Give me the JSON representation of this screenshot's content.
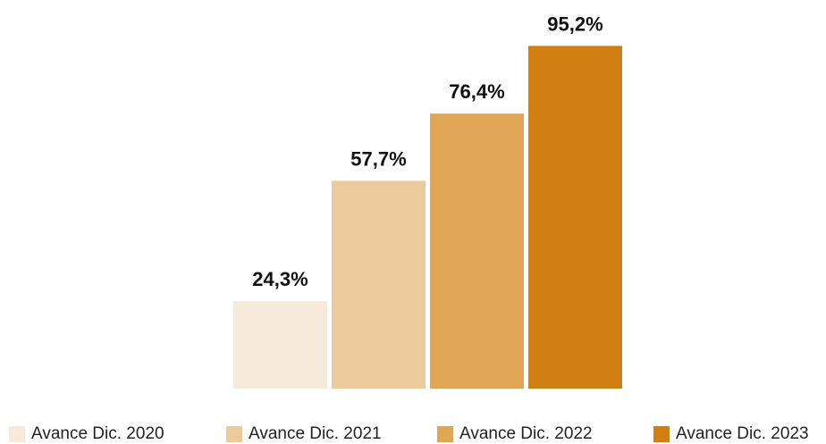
{
  "chart_data": {
    "type": "bar",
    "title": "",
    "xlabel": "",
    "ylabel": "",
    "ylim": [
      0,
      100
    ],
    "grid": false,
    "legend": "bottom",
    "categories": [
      "Avance Dic. 2020",
      "Avance Dic. 2021",
      "Avance Dic. 2022",
      "Avance Dic. 2023"
    ],
    "values": [
      24.3,
      57.7,
      76.4,
      95.2
    ],
    "labels": [
      "24,3%",
      "57,7%",
      "76,4%",
      "95,2%"
    ],
    "colors": [
      "#f7eadb",
      "#ecca9c",
      "#e0a555",
      "#d17f10"
    ]
  },
  "legend": {
    "items": [
      {
        "label": "Avance Dic. 2020",
        "color": "#f7eadb"
      },
      {
        "label": "Avance Dic. 2021",
        "color": "#ecca9c"
      },
      {
        "label": "Avance Dic. 2022",
        "color": "#e0a555"
      },
      {
        "label": "Avance Dic. 2023",
        "color": "#d17f10"
      }
    ]
  }
}
